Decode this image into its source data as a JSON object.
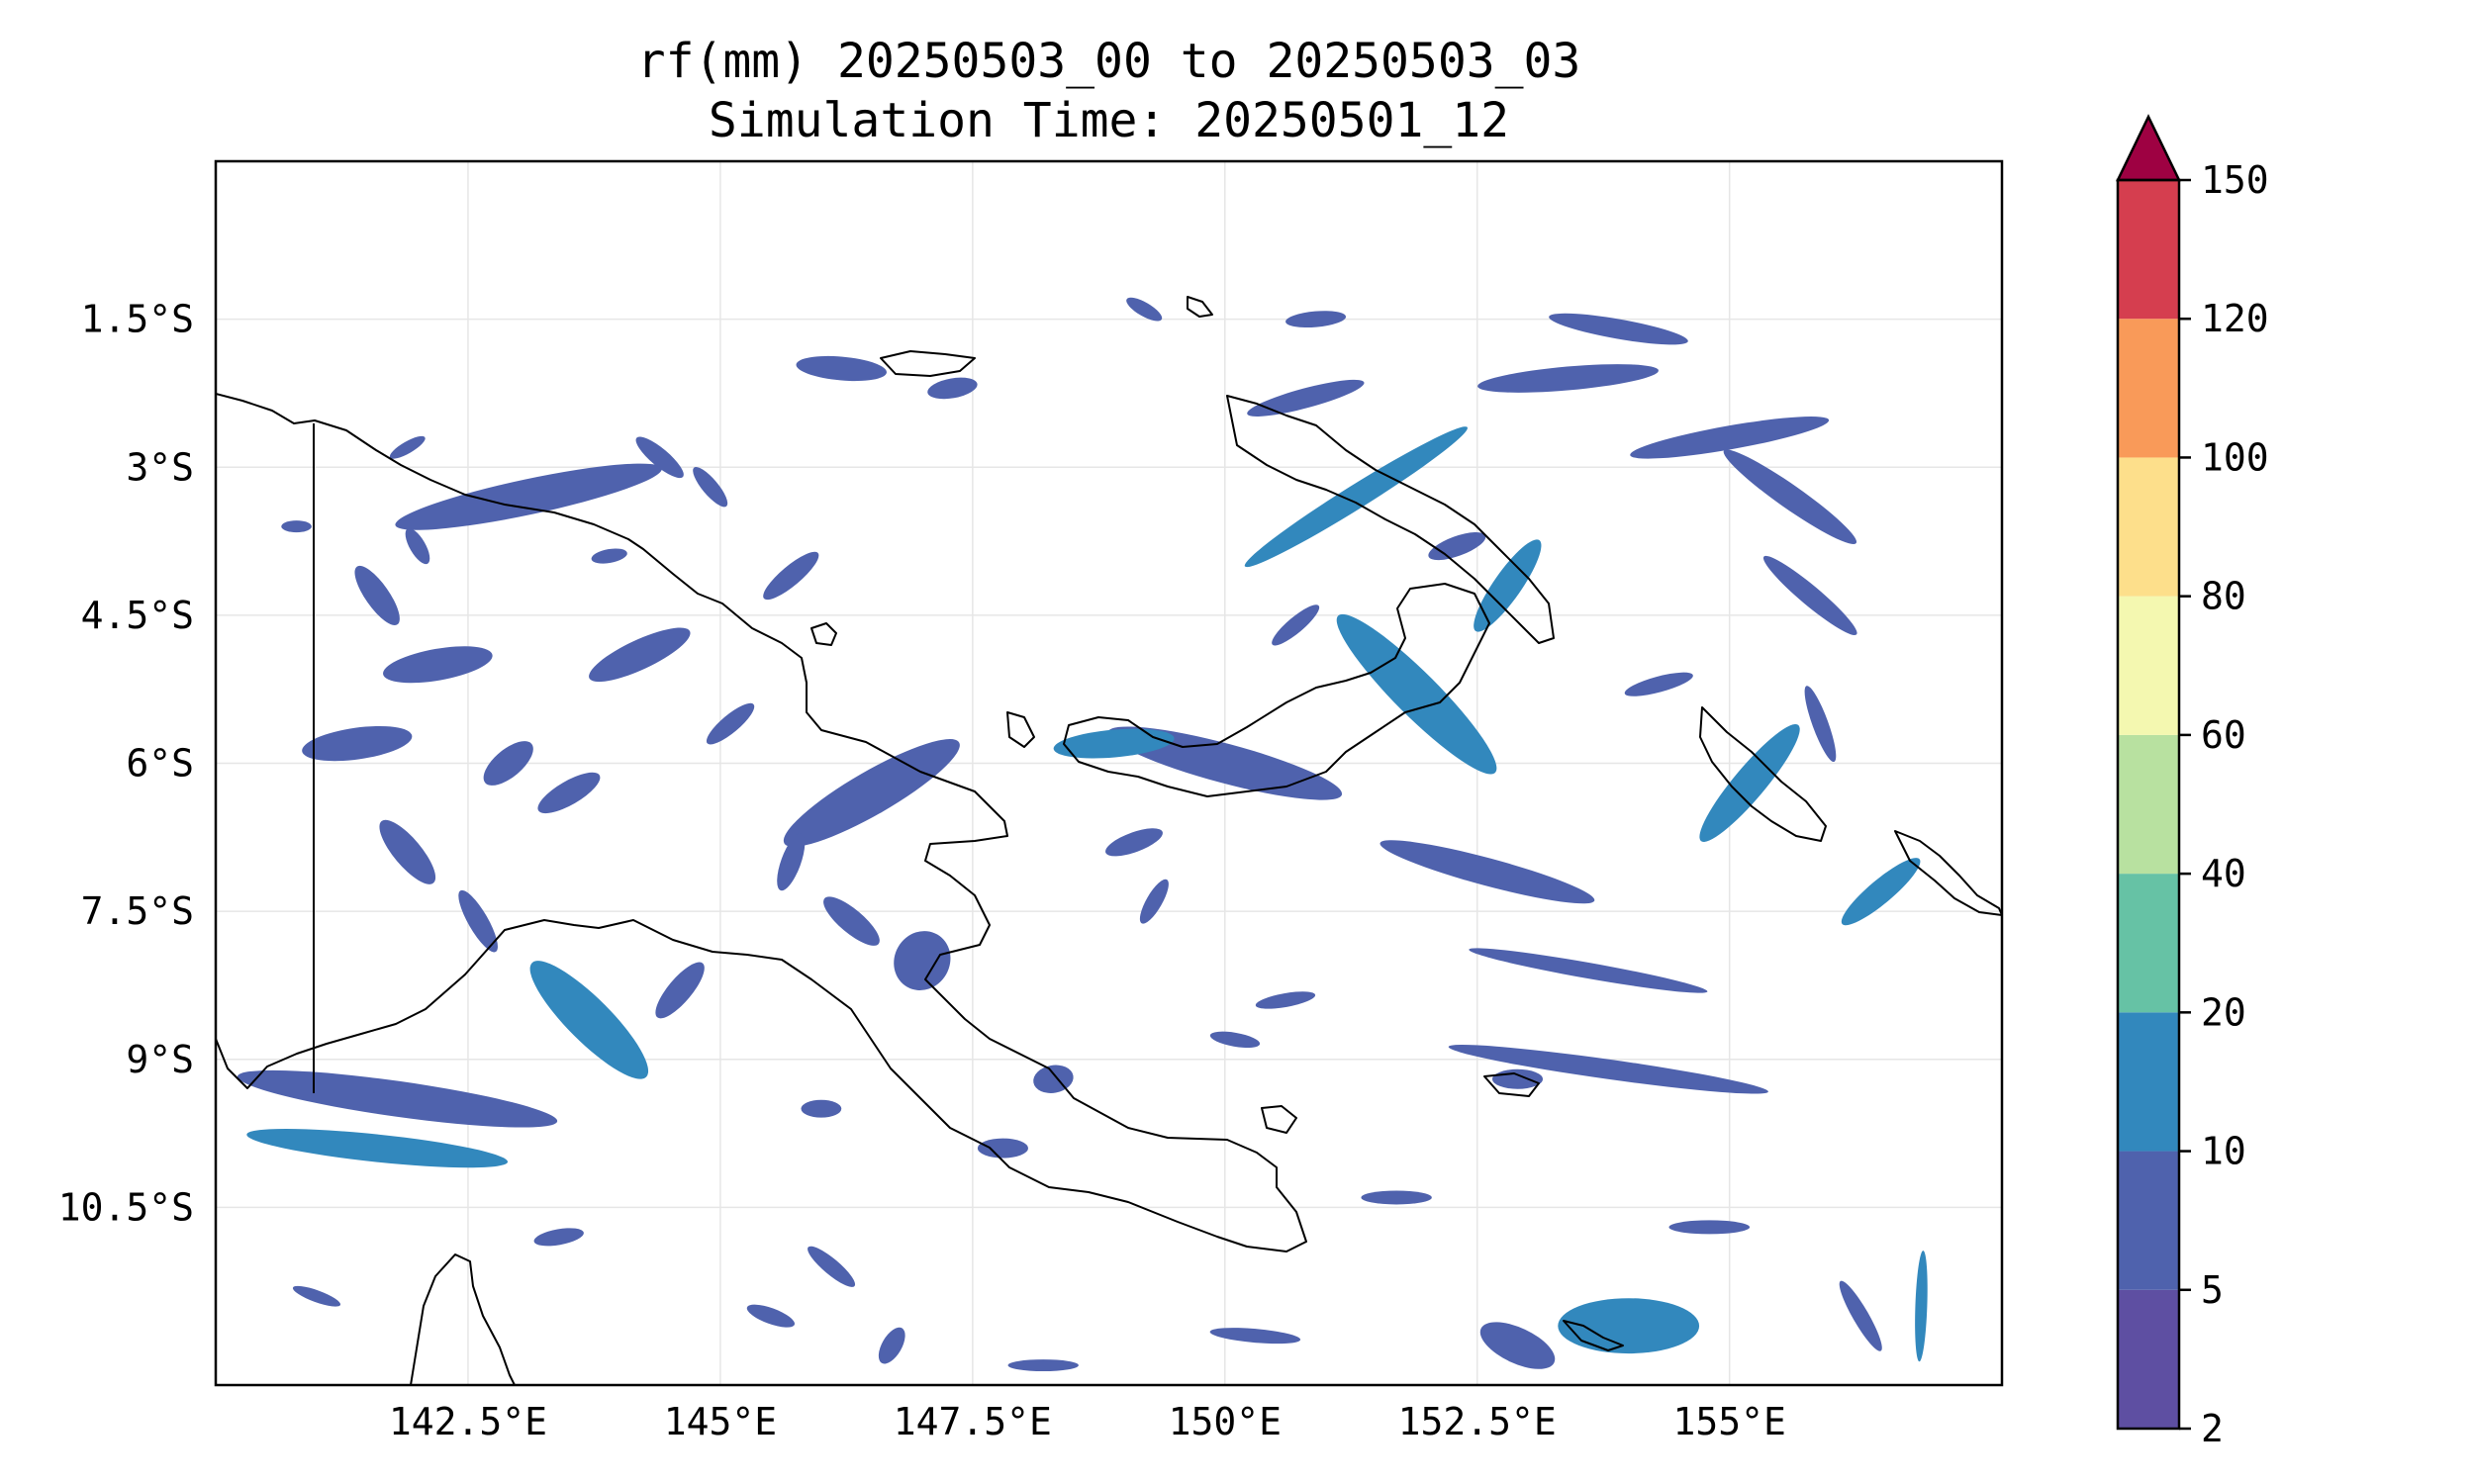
{
  "title": {
    "line1": "rf(mm) 20250503_00 to 20250503_03",
    "line2": "Simulation Time: 20250501_12"
  },
  "map": {
    "lon_range": [
      140.0,
      157.7
    ],
    "lat_range": [
      -12.3,
      0.1
    ],
    "lon_ticks": [
      {
        "value": 142.5,
        "label": "142.5°E"
      },
      {
        "value": 145.0,
        "label": "145°E"
      },
      {
        "value": 147.5,
        "label": "147.5°E"
      },
      {
        "value": 150.0,
        "label": "150°E"
      },
      {
        "value": 152.5,
        "label": "152.5°E"
      },
      {
        "value": 155.0,
        "label": "155°E"
      }
    ],
    "lat_ticks": [
      {
        "value": -1.5,
        "label": "1.5°S"
      },
      {
        "value": -3.0,
        "label": "3°S"
      },
      {
        "value": -4.5,
        "label": "4.5°S"
      },
      {
        "value": -6.0,
        "label": "6°S"
      },
      {
        "value": -7.5,
        "label": "7.5°S"
      },
      {
        "value": -9.0,
        "label": "9°S"
      },
      {
        "value": -10.5,
        "label": "10.5°S"
      }
    ],
    "gridlines": true,
    "coastline_color": "#000000"
  },
  "colorbar": {
    "levels": [
      2,
      5,
      10,
      20,
      40,
      60,
      80,
      100,
      120,
      150
    ],
    "labels": [
      "2",
      "5",
      "10",
      "20",
      "40",
      "60",
      "80",
      "100",
      "120",
      "150"
    ],
    "colors": [
      "#5e4fa2",
      "#4f62ad",
      "#3288bd",
      "#66c2a5",
      "#b8e1a0",
      "#f4f8b0",
      "#fddf8b",
      "#f99a59",
      "#d53e4f"
    ],
    "extend_color": "#9e0142",
    "extend": "max"
  },
  "rain_cells": [
    {
      "lon": 143.1,
      "lat": -3.3,
      "a": 1.35,
      "b": 0.18,
      "rot": 12,
      "lvl": 1
    },
    {
      "lon": 141.4,
      "lat": -5.8,
      "a": 0.55,
      "b": 0.16,
      "rot": 8,
      "lvl": 1
    },
    {
      "lon": 144.2,
      "lat": -4.9,
      "a": 0.55,
      "b": 0.15,
      "rot": 25,
      "lvl": 1
    },
    {
      "lon": 146.5,
      "lat": -6.3,
      "a": 1.0,
      "b": 0.22,
      "rot": 30,
      "lvl": 1
    },
    {
      "lon": 147.0,
      "lat": -8.0,
      "a": 0.3,
      "b": 0.28,
      "rot": 60,
      "lvl": 1
    },
    {
      "lon": 146.2,
      "lat": -2.0,
      "a": 0.45,
      "b": 0.12,
      "rot": -5,
      "lvl": 1
    },
    {
      "lon": 151.9,
      "lat": -5.3,
      "a": 1.1,
      "b": 0.22,
      "rot": -45,
      "lvl": 2
    },
    {
      "lon": 150.0,
      "lat": -6.0,
      "a": 1.2,
      "b": 0.2,
      "rot": -15,
      "lvl": 1
    },
    {
      "lon": 148.9,
      "lat": -5.8,
      "a": 0.6,
      "b": 0.14,
      "rot": 5,
      "lvl": 2
    },
    {
      "lon": 151.3,
      "lat": -3.3,
      "a": 1.3,
      "b": 0.12,
      "rot": 32,
      "lvl": 2
    },
    {
      "lon": 152.8,
      "lat": -4.2,
      "a": 0.55,
      "b": 0.14,
      "rot": 55,
      "lvl": 2
    },
    {
      "lon": 155.2,
      "lat": -6.2,
      "a": 0.75,
      "b": 0.16,
      "rot": 50,
      "lvl": 2
    },
    {
      "lon": 156.5,
      "lat": -7.3,
      "a": 0.5,
      "b": 0.12,
      "rot": 40,
      "lvl": 2
    },
    {
      "lon": 141.8,
      "lat": -9.4,
      "a": 1.6,
      "b": 0.18,
      "rot": -8,
      "lvl": 1
    },
    {
      "lon": 141.6,
      "lat": -9.9,
      "a": 1.3,
      "b": 0.14,
      "rot": -6,
      "lvl": 2
    },
    {
      "lon": 143.7,
      "lat": -8.6,
      "a": 0.8,
      "b": 0.22,
      "rot": -45,
      "lvl": 2
    },
    {
      "lon": 150.8,
      "lat": -2.3,
      "a": 0.6,
      "b": 0.1,
      "rot": 15,
      "lvl": 1
    },
    {
      "lon": 153.4,
      "lat": -2.1,
      "a": 0.9,
      "b": 0.12,
      "rot": 5,
      "lvl": 1
    },
    {
      "lon": 155.0,
      "lat": -2.7,
      "a": 1.0,
      "b": 0.12,
      "rot": 10,
      "lvl": 1
    },
    {
      "lon": 153.9,
      "lat": -1.6,
      "a": 0.7,
      "b": 0.1,
      "rot": -10,
      "lvl": 1
    },
    {
      "lon": 155.6,
      "lat": -3.3,
      "a": 0.8,
      "b": 0.12,
      "rot": -35,
      "lvl": 1
    },
    {
      "lon": 152.6,
      "lat": -7.1,
      "a": 1.1,
      "b": 0.14,
      "rot": -15,
      "lvl": 1
    },
    {
      "lon": 153.8,
      "lat": -9.1,
      "a": 1.6,
      "b": 0.1,
      "rot": -8,
      "lvl": 1
    },
    {
      "lon": 153.6,
      "lat": -8.1,
      "a": 1.2,
      "b": 0.08,
      "rot": -10,
      "lvl": 1
    },
    {
      "lon": 155.8,
      "lat": -4.3,
      "a": 0.6,
      "b": 0.1,
      "rot": -40,
      "lvl": 1
    },
    {
      "lon": 154.0,
      "lat": -11.7,
      "a": 0.7,
      "b": 0.28,
      "rot": 0,
      "lvl": 2
    },
    {
      "lon": 152.9,
      "lat": -11.9,
      "a": 0.4,
      "b": 0.18,
      "rot": -25,
      "lvl": 1
    },
    {
      "lon": 156.9,
      "lat": -11.5,
      "a": 0.55,
      "b": 0.06,
      "rot": 88,
      "lvl": 2
    },
    {
      "lon": 156.3,
      "lat": -11.6,
      "a": 0.4,
      "b": 0.08,
      "rot": -60,
      "lvl": 1
    },
    {
      "lon": 142.2,
      "lat": -5.0,
      "a": 0.55,
      "b": 0.16,
      "rot": 10,
      "lvl": 1
    },
    {
      "lon": 141.6,
      "lat": -4.3,
      "a": 0.35,
      "b": 0.12,
      "rot": -55,
      "lvl": 1
    },
    {
      "lon": 142.9,
      "lat": -6.0,
      "a": 0.3,
      "b": 0.14,
      "rot": 40,
      "lvl": 1
    },
    {
      "lon": 143.5,
      "lat": -6.3,
      "a": 0.35,
      "b": 0.12,
      "rot": 30,
      "lvl": 1
    },
    {
      "lon": 141.9,
      "lat": -6.9,
      "a": 0.4,
      "b": 0.14,
      "rot": -50,
      "lvl": 1
    },
    {
      "lon": 142.6,
      "lat": -7.6,
      "a": 0.35,
      "b": 0.1,
      "rot": -60,
      "lvl": 1
    },
    {
      "lon": 144.6,
      "lat": -8.3,
      "a": 0.35,
      "b": 0.12,
      "rot": 50,
      "lvl": 1
    },
    {
      "lon": 145.7,
      "lat": -7.0,
      "a": 0.3,
      "b": 0.1,
      "rot": 70,
      "lvl": 1
    },
    {
      "lon": 145.1,
      "lat": -5.6,
      "a": 0.3,
      "b": 0.09,
      "rot": 40,
      "lvl": 1
    },
    {
      "lon": 145.7,
      "lat": -4.1,
      "a": 0.35,
      "b": 0.1,
      "rot": 40,
      "lvl": 1
    },
    {
      "lon": 146.3,
      "lat": -7.6,
      "a": 0.35,
      "b": 0.12,
      "rot": -40,
      "lvl": 1
    },
    {
      "lon": 147.8,
      "lat": -9.9,
      "a": 0.25,
      "b": 0.1,
      "rot": 0,
      "lvl": 1
    },
    {
      "lon": 148.3,
      "lat": -9.2,
      "a": 0.2,
      "b": 0.14,
      "rot": 10,
      "lvl": 1
    },
    {
      "lon": 149.1,
      "lat": -6.8,
      "a": 0.3,
      "b": 0.1,
      "rot": 20,
      "lvl": 1
    },
    {
      "lon": 149.3,
      "lat": -7.4,
      "a": 0.25,
      "b": 0.08,
      "rot": 60,
      "lvl": 1
    },
    {
      "lon": 150.6,
      "lat": -8.4,
      "a": 0.3,
      "b": 0.07,
      "rot": 10,
      "lvl": 1
    },
    {
      "lon": 150.1,
      "lat": -8.8,
      "a": 0.25,
      "b": 0.07,
      "rot": -10,
      "lvl": 1
    },
    {
      "lon": 152.9,
      "lat": -9.2,
      "a": 0.25,
      "b": 0.1,
      "rot": 0,
      "lvl": 1
    },
    {
      "lon": 147.3,
      "lat": -2.2,
      "a": 0.25,
      "b": 0.1,
      "rot": 10,
      "lvl": 1
    },
    {
      "lon": 144.4,
      "lat": -2.9,
      "a": 0.3,
      "b": 0.09,
      "rot": -40,
      "lvl": 1
    },
    {
      "lon": 144.9,
      "lat": -3.2,
      "a": 0.25,
      "b": 0.08,
      "rot": -50,
      "lvl": 1
    },
    {
      "lon": 143.9,
      "lat": -3.9,
      "a": 0.18,
      "b": 0.07,
      "rot": 10,
      "lvl": 1
    },
    {
      "lon": 142.0,
      "lat": -3.8,
      "a": 0.2,
      "b": 0.08,
      "rot": -60,
      "lvl": 1
    },
    {
      "lon": 141.9,
      "lat": -2.8,
      "a": 0.2,
      "b": 0.06,
      "rot": 30,
      "lvl": 1
    },
    {
      "lon": 140.8,
      "lat": -3.6,
      "a": 0.15,
      "b": 0.06,
      "rot": 0,
      "lvl": 1
    },
    {
      "lon": 152.3,
      "lat": -3.8,
      "a": 0.3,
      "b": 0.1,
      "rot": 20,
      "lvl": 1
    },
    {
      "lon": 150.7,
      "lat": -4.6,
      "a": 0.3,
      "b": 0.08,
      "rot": 40,
      "lvl": 1
    },
    {
      "lon": 155.9,
      "lat": -5.6,
      "a": 0.4,
      "b": 0.08,
      "rot": -70,
      "lvl": 1
    },
    {
      "lon": 154.3,
      "lat": -5.2,
      "a": 0.35,
      "b": 0.08,
      "rot": 15,
      "lvl": 1
    },
    {
      "lon": 150.9,
      "lat": -1.5,
      "a": 0.3,
      "b": 0.08,
      "rot": 5,
      "lvl": 1
    },
    {
      "lon": 149.2,
      "lat": -1.4,
      "a": 0.2,
      "b": 0.07,
      "rot": -30,
      "lvl": 1
    },
    {
      "lon": 151.7,
      "lat": -10.4,
      "a": 0.35,
      "b": 0.07,
      "rot": 0,
      "lvl": 1
    },
    {
      "lon": 154.8,
      "lat": -10.7,
      "a": 0.4,
      "b": 0.07,
      "rot": 0,
      "lvl": 1
    },
    {
      "lon": 150.3,
      "lat": -11.8,
      "a": 0.45,
      "b": 0.07,
      "rot": -5,
      "lvl": 1
    },
    {
      "lon": 148.2,
      "lat": -12.1,
      "a": 0.35,
      "b": 0.06,
      "rot": 0,
      "lvl": 1
    },
    {
      "lon": 146.1,
      "lat": -11.1,
      "a": 0.3,
      "b": 0.08,
      "rot": -40,
      "lvl": 1
    },
    {
      "lon": 145.5,
      "lat": -11.6,
      "a": 0.25,
      "b": 0.08,
      "rot": -20,
      "lvl": 1
    },
    {
      "lon": 146.0,
      "lat": -9.5,
      "a": 0.2,
      "b": 0.09,
      "rot": 0,
      "lvl": 1
    },
    {
      "lon": 143.4,
      "lat": -10.8,
      "a": 0.25,
      "b": 0.08,
      "rot": 10,
      "lvl": 1
    },
    {
      "lon": 141.0,
      "lat": -11.4,
      "a": 0.25,
      "b": 0.06,
      "rot": -20,
      "lvl": 1
    },
    {
      "lon": 146.7,
      "lat": -11.9,
      "a": 0.2,
      "b": 0.1,
      "rot": 60,
      "lvl": 1
    }
  ]
}
